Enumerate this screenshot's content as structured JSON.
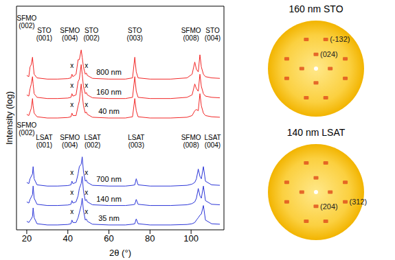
{
  "chart_data": [
    {
      "type": "line",
      "x_label": "2θ (°)",
      "y_label": "Intensity (log)",
      "tick_labels": "x",
      "xlim": [
        15,
        116
      ],
      "xticks": [
        20,
        40,
        60,
        80,
        100
      ],
      "ylim": [
        0,
        92
      ],
      "x": [
        20,
        21,
        21.6,
        22.2,
        22.8,
        23.1,
        23.6,
        25,
        30,
        35,
        40,
        41.5,
        42,
        42.5,
        44,
        45,
        45.6,
        46.5,
        47,
        47.6,
        48.5,
        49,
        49.5,
        52,
        60,
        68,
        71.5,
        72.6,
        73.3,
        74.2,
        80,
        90,
        98,
        100.5,
        101.8,
        102.6,
        103.5,
        104.3,
        105,
        106,
        107,
        110,
        114
      ],
      "series": [
        {
          "name": "800 nm",
          "color": "#f22626",
          "values": [
            63.5,
            63,
            67,
            68,
            71,
            68,
            64,
            62.5,
            62,
            62,
            62.2,
            62.5,
            64,
            63,
            64,
            70,
            70,
            74,
            71,
            67,
            64,
            64.5,
            63.5,
            62.3,
            62,
            62,
            62.5,
            71,
            65,
            62.5,
            62,
            62,
            62.5,
            64,
            69,
            66,
            65,
            72,
            67,
            64,
            63,
            62.5,
            62.3
          ]
        },
        {
          "name": "160 nm",
          "color": "#f22626",
          "values": [
            55.5,
            55,
            58,
            60,
            63,
            60,
            56,
            54.5,
            54,
            54,
            54.2,
            54.5,
            56,
            55,
            55.5,
            61,
            62,
            68,
            64,
            59,
            56,
            56.5,
            55.5,
            54.3,
            54,
            54,
            54.5,
            63,
            57,
            54.5,
            54,
            54,
            54.5,
            55.5,
            60,
            58,
            57,
            64,
            59,
            56,
            55,
            54.5,
            54.3
          ]
        },
        {
          "name": "40 nm",
          "color": "#f22626",
          "values": [
            47.5,
            47,
            48.5,
            50,
            54,
            51,
            48,
            46.5,
            46,
            46,
            46.2,
            46.5,
            48,
            47,
            47,
            51,
            53,
            60,
            56,
            51,
            48,
            48.5,
            47.5,
            46.3,
            46,
            46,
            46.5,
            54,
            49,
            46.5,
            46,
            46,
            46.3,
            47,
            49,
            49.5,
            49,
            56,
            51,
            48,
            47,
            46.5,
            46.3
          ]
        },
        {
          "name": "700 nm",
          "color": "#2b35d8",
          "values": [
            19.5,
            19,
            21,
            22,
            23,
            26,
            21,
            18.5,
            18,
            18,
            18.2,
            18.5,
            20,
            19,
            19.5,
            23,
            26,
            27,
            30,
            24,
            20,
            20.5,
            19.5,
            18.3,
            18,
            18,
            18.3,
            18.5,
            21,
            18.5,
            18,
            18,
            18.3,
            18.8,
            19.5,
            21,
            25,
            22,
            21,
            26,
            20,
            18.5,
            18.3
          ]
        },
        {
          "name": "140 nm",
          "color": "#2b35d8",
          "values": [
            11.5,
            11,
            12.5,
            13.5,
            14.5,
            18,
            13,
            10.5,
            10,
            10,
            10.2,
            10.5,
            12,
            11,
            11.5,
            14,
            17,
            19,
            22,
            16,
            12,
            12.5,
            11.5,
            10.3,
            10,
            10,
            10.3,
            10.5,
            12.5,
            10.5,
            10,
            10,
            10.3,
            10.8,
            11.5,
            13,
            17,
            14,
            13,
            18,
            12,
            10.5,
            10.3
          ]
        },
        {
          "name": "35 nm",
          "color": "#2b35d8",
          "values": [
            3.5,
            3,
            3.8,
            4.5,
            5.5,
            9,
            5,
            2.5,
            2,
            2,
            2.2,
            2.5,
            4,
            3,
            3,
            5,
            7,
            10,
            13,
            8,
            4,
            4.5,
            3.5,
            2.3,
            2,
            2,
            2.3,
            2.5,
            4.5,
            2.5,
            2,
            2,
            2.2,
            2.5,
            3,
            4,
            5,
            6,
            6.5,
            10,
            4,
            2.5,
            2.3
          ]
        }
      ],
      "annotations": [
        {
          "text": "SFMO (002)",
          "x": 20,
          "y": 83
        },
        {
          "text": "STO (001)",
          "x": 28.5,
          "y": 78
        },
        {
          "text": "SFMO (004)",
          "x": 41,
          "y": 78
        },
        {
          "text": "STO (002)",
          "x": 51.5,
          "y": 78
        },
        {
          "text": "STO (003)",
          "x": 72.6,
          "y": 78
        },
        {
          "text": "SFMO (008)",
          "x": 100,
          "y": 78
        },
        {
          "text": "STO (004)",
          "x": 110.5,
          "y": 78
        },
        {
          "text": "SFMO (002)",
          "x": 20,
          "y": 39
        },
        {
          "text": "LSAT (001)",
          "x": 28.5,
          "y": 34
        },
        {
          "text": "SFMO (004)",
          "x": 41,
          "y": 34
        },
        {
          "text": "LSAT (002)",
          "x": 52,
          "y": 34
        },
        {
          "text": "LSAT (003)",
          "x": 73.3,
          "y": 34
        },
        {
          "text": "SFMO (008)",
          "x": 100,
          "y": 34
        },
        {
          "text": "LSAT (004)",
          "x": 110.5,
          "y": 34
        },
        {
          "text": "x",
          "x": 42,
          "y": 66.5
        },
        {
          "text": "x",
          "x": 49,
          "y": 66.5
        },
        {
          "text": "x",
          "x": 42,
          "y": 58.5
        },
        {
          "text": "x",
          "x": 49,
          "y": 58.5
        },
        {
          "text": "x",
          "x": 42,
          "y": 50.5
        },
        {
          "text": "x",
          "x": 49,
          "y": 50.5
        },
        {
          "text": "x",
          "x": 42,
          "y": 22.5
        },
        {
          "text": "x",
          "x": 49,
          "y": 22.5
        },
        {
          "text": "x",
          "x": 42,
          "y": 14.5
        },
        {
          "text": "x",
          "x": 49,
          "y": 14.5
        },
        {
          "text": "x",
          "x": 42,
          "y": 6.5
        },
        {
          "text": "x",
          "x": 49,
          "y": 6.5
        }
      ]
    },
    {
      "type": "pole_figure",
      "title": "160 nm STO",
      "rlim": [
        0,
        90
      ],
      "spots": [
        {
          "psi": 26.6,
          "phi": 0
        },
        {
          "psi": 26.6,
          "phi": 90
        },
        {
          "psi": 26.6,
          "phi": 180
        },
        {
          "psi": 26.6,
          "phi": 270
        },
        {
          "psi": 57.7,
          "phi": 18.4
        },
        {
          "psi": 57.7,
          "phi": 71.6
        },
        {
          "psi": 57.7,
          "phi": 108.4
        },
        {
          "psi": 57.7,
          "phi": 161.6
        },
        {
          "psi": 57.7,
          "phi": 198.4
        },
        {
          "psi": 57.7,
          "phi": 251.6
        },
        {
          "psi": 57.7,
          "phi": 288.4
        },
        {
          "psi": 57.7,
          "phi": 341.6
        }
      ],
      "labels": [
        {
          "text": "(-132)",
          "psi": 57.7,
          "phi": 71.6
        },
        {
          "text": "(024)",
          "psi": 26.6,
          "phi": 90
        }
      ]
    },
    {
      "type": "pole_figure",
      "title": "140 nm LSAT",
      "rlim": [
        0,
        90
      ],
      "spots": [
        {
          "psi": 26.6,
          "phi": 0
        },
        {
          "psi": 26.6,
          "phi": 90
        },
        {
          "psi": 26.6,
          "phi": 180
        },
        {
          "psi": 26.6,
          "phi": 270
        },
        {
          "psi": 57.7,
          "phi": 18.4
        },
        {
          "psi": 57.7,
          "phi": 71.6
        },
        {
          "psi": 57.7,
          "phi": 108.4
        },
        {
          "psi": 57.7,
          "phi": 161.6
        },
        {
          "psi": 57.7,
          "phi": 198.4
        },
        {
          "psi": 57.7,
          "phi": 251.6
        },
        {
          "psi": 57.7,
          "phi": 288.4
        },
        {
          "psi": 57.7,
          "phi": 341.6
        }
      ],
      "labels": [
        {
          "text": "(204)",
          "psi": 26.6,
          "phi": 270
        },
        {
          "text": "(312)",
          "psi": 57.7,
          "phi": 341.6
        }
      ]
    }
  ]
}
